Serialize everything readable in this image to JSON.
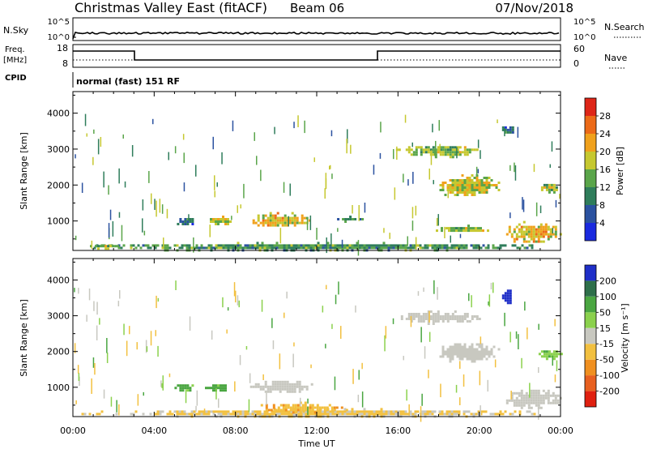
{
  "header": {
    "station": "Christmas Valley East (fitACF)",
    "beam": "Beam 06",
    "date": "07/Nov/2018"
  },
  "top_panels": {
    "nsky_label": "N.Sky",
    "nsky_ticks": [
      "10^5",
      "10^0"
    ],
    "nsearch_label": "N.Search",
    "nsearch_ticks": [
      "10^5",
      "10^0"
    ],
    "freq_label_top": "Freq.",
    "freq_label_unit": "[MHz]",
    "freq_ticks": [
      "18",
      "8"
    ],
    "nave_label": "Nave",
    "nave_ticks": [
      "60",
      "0"
    ],
    "cpid_label": "CPID",
    "cpid_value": "normal (fast) 151 RF"
  },
  "chart_data": [
    {
      "type": "heatmap",
      "name": "power",
      "ylabel": "Slant Range [km]",
      "xlabel": "Time UT",
      "xlim": [
        0,
        24
      ],
      "ylim": [
        180,
        4600
      ],
      "x_ticks": [
        "00:00",
        "04:00",
        "08:00",
        "12:00",
        "16:00",
        "20:00",
        "00:00"
      ],
      "y_ticks": [
        1000,
        2000,
        3000,
        4000
      ],
      "colorbar": {
        "label": "Power [dB]",
        "ticks": [
          4,
          8,
          12,
          16,
          20,
          24,
          28
        ],
        "colors": [
          "#1a2adf",
          "#2b52a0",
          "#2f7d5b",
          "#5aa54a",
          "#c6c830",
          "#f0a11c",
          "#ec6a18",
          "#de2618"
        ]
      },
      "regions": [
        {
          "t0": 0.3,
          "t1": 24,
          "r0": 200,
          "r1": 420,
          "value": 12
        },
        {
          "t0": 0.6,
          "t1": 2.5,
          "r0": 260,
          "r1": 400,
          "value": 16
        },
        {
          "t0": 5.0,
          "t1": 6.0,
          "r0": 900,
          "r1": 1150,
          "value": 8
        },
        {
          "t0": 6.5,
          "t1": 7.8,
          "r0": 900,
          "r1": 1150,
          "value": 18
        },
        {
          "t0": 8.6,
          "t1": 11.8,
          "r0": 850,
          "r1": 1250,
          "value": 20
        },
        {
          "t0": 13.0,
          "t1": 14.3,
          "r0": 1000,
          "r1": 1150,
          "value": 10
        },
        {
          "t0": 15.9,
          "t1": 20.1,
          "r0": 2800,
          "r1": 3150,
          "value": 16
        },
        {
          "t0": 17.8,
          "t1": 21.0,
          "r0": 1700,
          "r1": 2300,
          "value": 18
        },
        {
          "t0": 21.0,
          "t1": 21.7,
          "r0": 3400,
          "r1": 3700,
          "value": 8
        },
        {
          "t0": 17.5,
          "t1": 20.5,
          "r0": 700,
          "r1": 900,
          "value": 16
        },
        {
          "t0": 21.2,
          "t1": 24,
          "r0": 400,
          "r1": 1000,
          "value": 20
        },
        {
          "t0": 22.8,
          "t1": 24,
          "r0": 1800,
          "r1": 2100,
          "value": 16
        }
      ]
    },
    {
      "type": "heatmap",
      "name": "velocity",
      "ylabel": "Slant Range [km]",
      "xlabel": "Time UT",
      "xlim": [
        0,
        24
      ],
      "ylim": [
        180,
        4600
      ],
      "x_ticks": [
        "00:00",
        "04:00",
        "08:00",
        "12:00",
        "16:00",
        "20:00",
        "00:00"
      ],
      "y_ticks": [
        1000,
        2000,
        3000,
        4000
      ],
      "colorbar": {
        "label": "Velocity [m s⁻¹]",
        "ticks": [
          200,
          100,
          50,
          15,
          -15,
          -50,
          -100,
          -200
        ],
        "colors": [
          "#1f2fc8",
          "#2e6f4a",
          "#4aa641",
          "#8bd14d",
          "#c8c8c0",
          "#f2c040",
          "#f09020",
          "#e86020",
          "#e02010"
        ]
      },
      "regions": [
        {
          "t0": 0.3,
          "t1": 24,
          "r0": 200,
          "r1": 420,
          "value": -20
        },
        {
          "t0": 5.0,
          "t1": 6.0,
          "r0": 900,
          "r1": 1150,
          "value": 60
        },
        {
          "t0": 6.5,
          "t1": 7.8,
          "r0": 900,
          "r1": 1150,
          "value": 60
        },
        {
          "t0": 8.6,
          "t1": 11.8,
          "r0": 850,
          "r1": 1250,
          "value": 0
        },
        {
          "t0": 9.0,
          "t1": 13.5,
          "r0": 300,
          "r1": 600,
          "value": -40
        },
        {
          "t0": 15.9,
          "t1": 20.1,
          "r0": 2800,
          "r1": 3150,
          "value": 0
        },
        {
          "t0": 17.8,
          "t1": 21.0,
          "r0": 1700,
          "r1": 2300,
          "value": 0
        },
        {
          "t0": 21.0,
          "t1": 21.7,
          "r0": 3300,
          "r1": 3800,
          "value": 220
        },
        {
          "t0": 21.2,
          "t1": 24,
          "r0": 400,
          "r1": 1000,
          "value": 0
        },
        {
          "t0": 22.8,
          "t1": 24,
          "r0": 1800,
          "r1": 2100,
          "value": 40
        }
      ]
    }
  ]
}
